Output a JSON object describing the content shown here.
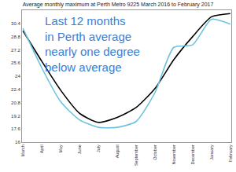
{
  "chart_data": {
    "type": "line",
    "title": "Average monthly maximum at Perth Metro 9225 March 2016 to February 2017",
    "annotation": {
      "lines": [
        "Last 12 months",
        "in Perth average",
        "nearly one degree",
        "below average"
      ]
    },
    "categories": [
      "March",
      "April",
      "May",
      "June",
      "July",
      "August",
      "September",
      "October",
      "November",
      "December",
      "January",
      "February"
    ],
    "series": [
      {
        "color": "#000000",
        "values": [
          29.5,
          25.8,
          22.3,
          19.5,
          18.4,
          19.0,
          20.2,
          22.5,
          26.0,
          28.8,
          31.2,
          31.6
        ]
      },
      {
        "color": "#6cc3e0",
        "values": [
          29.8,
          25.0,
          20.9,
          18.7,
          17.8,
          17.8,
          18.5,
          22.0,
          27.5,
          27.8,
          30.9,
          30.3
        ]
      }
    ],
    "ylim": [
      16,
      32
    ],
    "yticks": [
      16,
      17.6,
      19.2,
      20.8,
      22.4,
      24,
      25.6,
      27.2,
      28.8,
      30.4
    ],
    "grid": false
  }
}
